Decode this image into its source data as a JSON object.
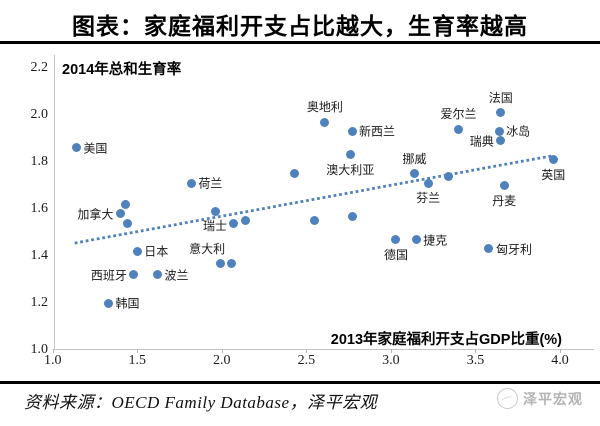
{
  "title": "图表：家庭福利开支占比越大，生育率越高",
  "source": "资料来源：OECD Family Database，泽平宏观",
  "watermark": "泽平宏观",
  "colors": {
    "dot": "#4f81bd",
    "trendline": "#4f81bd",
    "axis_line": "#c4c4c4",
    "text": "#1a1a1a",
    "watermark": "#b3b3b3"
  },
  "chart_data": {
    "type": "scatter",
    "title": "图表：家庭福利开支占比越大，生育率越高",
    "inner_ylabel": "2014年总和生育率",
    "inner_xlabel": "2013年家庭福利开支占GDP比重(%)",
    "xlim": [
      1.0,
      4.0
    ],
    "ylim": [
      1.0,
      2.2
    ],
    "xticks": [
      1.0,
      1.5,
      2.0,
      2.5,
      3.0,
      3.5,
      4.0
    ],
    "yticks": [
      1.0,
      1.2,
      1.4,
      1.6,
      1.8,
      2.0,
      2.2
    ],
    "grid": false,
    "points": [
      {
        "label": "美国",
        "x": 1.14,
        "y": 1.86,
        "label_pos": "right"
      },
      {
        "label": "",
        "x": 1.43,
        "y": 1.62,
        "label_pos": ""
      },
      {
        "label": "加拿大",
        "x": 1.4,
        "y": 1.58,
        "label_pos": "left"
      },
      {
        "label": "",
        "x": 1.44,
        "y": 1.54,
        "label_pos": ""
      },
      {
        "label": "荷兰",
        "x": 1.82,
        "y": 1.71,
        "label_pos": "right"
      },
      {
        "label": "日本",
        "x": 1.5,
        "y": 1.42,
        "label_pos": "right"
      },
      {
        "label": "西班牙",
        "x": 1.48,
        "y": 1.32,
        "label_pos": "left"
      },
      {
        "label": "波兰",
        "x": 1.62,
        "y": 1.32,
        "label_pos": "right"
      },
      {
        "label": "韩国",
        "x": 1.33,
        "y": 1.2,
        "label_pos": "right"
      },
      {
        "label": "瑞士",
        "x": 1.96,
        "y": 1.59,
        "label_pos": "below"
      },
      {
        "label": "",
        "x": 2.07,
        "y": 1.54,
        "label_pos": ""
      },
      {
        "label": "",
        "x": 2.14,
        "y": 1.55,
        "label_pos": ""
      },
      {
        "label": "意大利",
        "x": 1.99,
        "y": 1.37,
        "label_pos": "above-left"
      },
      {
        "label": "",
        "x": 2.06,
        "y": 1.37,
        "label_pos": ""
      },
      {
        "label": "",
        "x": 2.43,
        "y": 1.75,
        "label_pos": ""
      },
      {
        "label": "",
        "x": 2.55,
        "y": 1.55,
        "label_pos": ""
      },
      {
        "label": "",
        "x": 2.77,
        "y": 1.57,
        "label_pos": ""
      },
      {
        "label": "奥地利",
        "x": 2.61,
        "y": 1.97,
        "label_pos": "above"
      },
      {
        "label": "新西兰",
        "x": 2.77,
        "y": 1.93,
        "label_pos": "right"
      },
      {
        "label": "澳大利亚",
        "x": 2.76,
        "y": 1.83,
        "label_pos": "below"
      },
      {
        "label": "挪威",
        "x": 3.14,
        "y": 1.75,
        "label_pos": "above"
      },
      {
        "label": "芬兰",
        "x": 3.22,
        "y": 1.71,
        "label_pos": "below"
      },
      {
        "label": "",
        "x": 3.34,
        "y": 1.74,
        "label_pos": ""
      },
      {
        "label": "爱尔兰",
        "x": 3.4,
        "y": 1.94,
        "label_pos": "above"
      },
      {
        "label": "法国",
        "x": 3.65,
        "y": 2.01,
        "label_pos": "above"
      },
      {
        "label": "冰岛",
        "x": 3.64,
        "y": 1.93,
        "label_pos": "right"
      },
      {
        "label": "瑞典",
        "x": 3.65,
        "y": 1.89,
        "label_pos": "left"
      },
      {
        "label": "英国",
        "x": 3.96,
        "y": 1.81,
        "label_pos": "below"
      },
      {
        "label": "德国",
        "x": 3.03,
        "y": 1.47,
        "label_pos": "below"
      },
      {
        "label": "捷克",
        "x": 3.15,
        "y": 1.47,
        "label_pos": "right"
      },
      {
        "label": "丹麦",
        "x": 3.67,
        "y": 1.7,
        "label_pos": "below"
      },
      {
        "label": "匈牙利",
        "x": 3.58,
        "y": 1.43,
        "label_pos": "right"
      }
    ],
    "trendline": {
      "x1": 1.13,
      "y1": 1.455,
      "x2": 3.95,
      "y2": 1.826,
      "style": "dotted"
    },
    "legend": "none"
  }
}
